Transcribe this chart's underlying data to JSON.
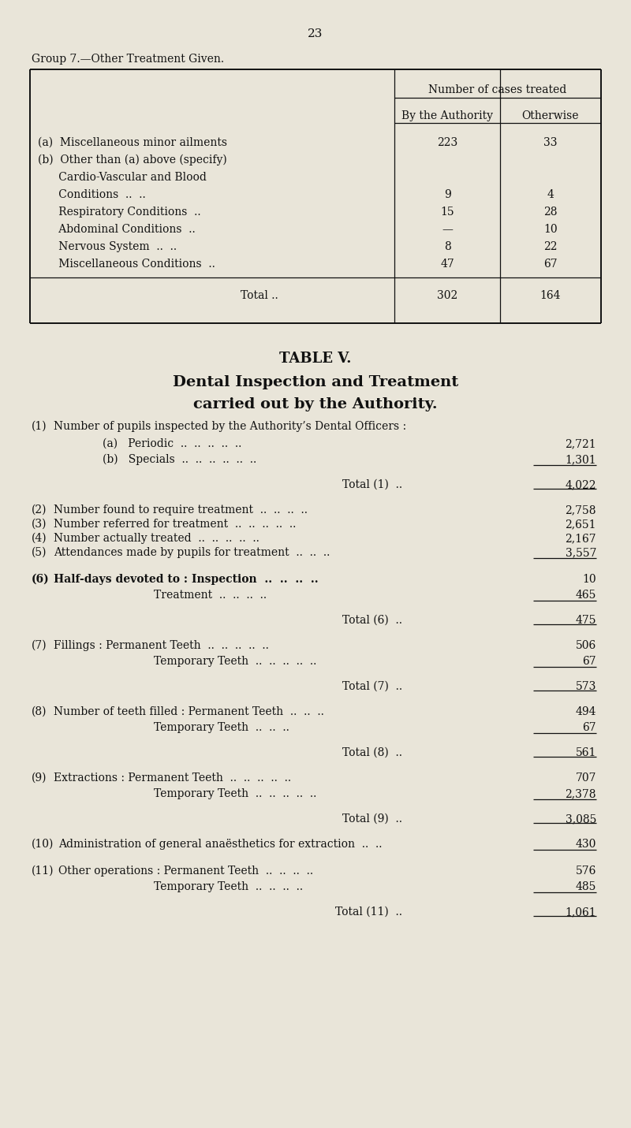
{
  "bg_color": "#e9e5d9",
  "page_number": "23",
  "group_title": "Group 7.—Other Treatment Given.",
  "table1": {
    "col_header_main": "Number of cases treated",
    "col_header_1": "By the Authority",
    "col_header_2": "Otherwise",
    "row_a_label1": "(a)  Miscellaneous minor ailments",
    "row_a_label2": "(b)  Other than (a) above (specify)",
    "row_a_label3": "      Cardio-Vascular and Blood",
    "row_a_v1": "223",
    "row_a_v2": "33",
    "row_b1_label": "      Conditions",
    "row_b1_v1": "9",
    "row_b1_v2": "4",
    "row_b2_label": "      Respiratory Conditions",
    "row_b2_v1": "15",
    "row_b2_v2": "28",
    "row_b3_label": "      Abdominal Conditions",
    "row_b3_v1": "—",
    "row_b3_v2": "10",
    "row_b4_label": "      Nervous System",
    "row_b4_v1": "8",
    "row_b4_v2": "22",
    "row_b5_label": "      Miscellaneous Conditions",
    "row_b5_v1": "47",
    "row_b5_v2": "67",
    "total_label": "Total ..",
    "total_v1": "302",
    "total_v2": "164"
  },
  "table2_title": "TABLE V.",
  "table2_subtitle1": "Dental Inspection and Treatment",
  "table2_subtitle2": "carried out by the Authority.",
  "item1_label": "Number of pupils inspected by the Authority’s Dental Officers :",
  "item1a_label": "(a)   Periodic",
  "item1a_dots": ".. .. .. .. ..",
  "item1a_val": "2,721",
  "item1b_label": "(b)   Specials",
  "item1b_dots": ".. .. .. .. .. ..",
  "item1b_val": "1,301",
  "item1_total_val": "4,022",
  "item2_label": "Number found to require treatment",
  "item2_dots": ".. .. .. ..",
  "item2_val": "2,758",
  "item3_label": "Number referred for treatment",
  "item3_dots": ".. .. .. .. ..",
  "item3_val": "2,651",
  "item4_label": "Number actually treated",
  "item4_dots": ".. .. .. .. .. ..",
  "item4_val": "2,167",
  "item5_label": "Attendances made by pupils for treatment",
  "item5_dots": ".. .. ..",
  "item5_val": "3,557",
  "item6_label": "Half-days devoted to : Inspection",
  "item6_dots": ".. .. .. ..",
  "item6_val": "10",
  "item6b_label": "Treatment",
  "item6b_dots": ".. .. .. ..",
  "item6b_val": "465",
  "item6_total_val": "475",
  "item7_label": "Fillings : Permanent Teeth",
  "item7_dots": ".. .. .. .. ..",
  "item7_val": "506",
  "item7b_label": "Temporary Teeth",
  "item7b_dots": ".. .. .. .. ..",
  "item7b_val": "67",
  "item7_total_val": "573",
  "item8_label": "Number of teeth filled : Permanent Teeth",
  "item8_dots": ".. .. ..",
  "item8_val": "494",
  "item8b_label": "Temporary Teeth",
  "item8b_dots": ".. .. ..",
  "item8b_val": "67",
  "item8_total_val": "561",
  "item9_label": "Extractions : Permanent Teeth",
  "item9_dots": ".. .. .. .. ..",
  "item9_val": "707",
  "item9b_label": "Temporary Teeth",
  "item9b_dots": ".. .. .. .. ..",
  "item9b_val": "2,378",
  "item9_total_val": "3,085",
  "item10_label": "Administration of general anaësthetics for extraction",
  "item10_dots": ".. ..",
  "item10_val": "430",
  "item11_label": "Other operations : Permanent Teeth",
  "item11_dots": ".. .. .. ..",
  "item11_val": "576",
  "item11b_label": "Temporary Teeth",
  "item11b_dots": ".. .. .. ..",
  "item11b_val": "485",
  "item11_total_val": "1,061"
}
